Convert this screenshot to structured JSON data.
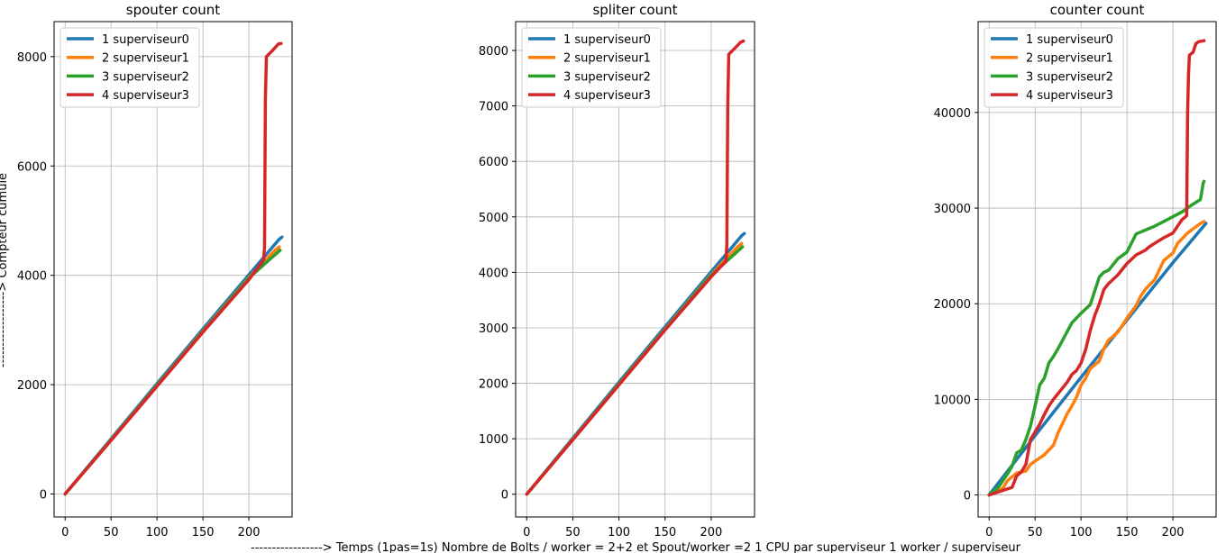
{
  "figure": {
    "ylabel": "------------------> Compteur cumulé",
    "xlabel": "-----------------> Temps (1pas=1s)  Nombre de Bolts / worker = 2+2 et Spout/worker =2  1 CPU par superviseur  1 worker / superviseur"
  },
  "colors": {
    "series0": "#1f77b4",
    "series1": "#ff7f0e",
    "series2": "#2ca02c",
    "series3": "#d62728",
    "grid": "#b0b0b0"
  },
  "chart_data": [
    {
      "type": "line",
      "title": "spouter count",
      "xlim": [
        -12,
        247
      ],
      "ylim": [
        -420,
        8640
      ],
      "xticks": [
        0,
        50,
        100,
        150,
        200
      ],
      "yticks": [
        0,
        2000,
        4000,
        6000,
        8000
      ],
      "grid": true,
      "legend": "top-left",
      "series": [
        {
          "name": "1 superviseur0",
          "x": [
            0,
            50,
            100,
            150,
            200,
            233,
            236
          ],
          "y": [
            0,
            1010,
            2020,
            3020,
            4010,
            4660,
            4700
          ]
        },
        {
          "name": "2 superviseur1",
          "x": [
            0,
            50,
            100,
            150,
            200,
            228,
            233
          ],
          "y": [
            0,
            990,
            1990,
            2980,
            3960,
            4450,
            4520
          ]
        },
        {
          "name": "3 superviseur2",
          "x": [
            0,
            50,
            100,
            150,
            200,
            228,
            234
          ],
          "y": [
            0,
            985,
            1985,
            2970,
            3950,
            4370,
            4460
          ]
        },
        {
          "name": "4 superviseur3",
          "x": [
            0,
            50,
            100,
            150,
            200,
            216,
            217,
            218,
            219,
            225,
            232,
            235
          ],
          "y": [
            0,
            980,
            1970,
            2960,
            3920,
            4280,
            4500,
            7200,
            8000,
            8100,
            8230,
            8240
          ]
        }
      ]
    },
    {
      "type": "line",
      "title": "spliter count",
      "xlim": [
        -12,
        247
      ],
      "ylim": [
        -410,
        8520
      ],
      "xticks": [
        0,
        50,
        100,
        150,
        200
      ],
      "yticks": [
        0,
        1000,
        2000,
        3000,
        4000,
        5000,
        6000,
        7000,
        8000
      ],
      "grid": true,
      "legend": "top-left",
      "series": [
        {
          "name": "1 superviseur0",
          "x": [
            0,
            50,
            100,
            150,
            200,
            233,
            236
          ],
          "y": [
            0,
            1010,
            2020,
            3020,
            4010,
            4660,
            4700
          ]
        },
        {
          "name": "2 superviseur1",
          "x": [
            0,
            50,
            100,
            150,
            200,
            228,
            233
          ],
          "y": [
            0,
            990,
            1990,
            2980,
            3960,
            4450,
            4520
          ]
        },
        {
          "name": "3 superviseur2",
          "x": [
            0,
            50,
            100,
            150,
            200,
            228,
            234
          ],
          "y": [
            0,
            985,
            1985,
            2970,
            3950,
            4370,
            4460
          ]
        },
        {
          "name": "4 superviseur3",
          "x": [
            0,
            50,
            100,
            150,
            200,
            216,
            217,
            218,
            219,
            225,
            232,
            235
          ],
          "y": [
            0,
            980,
            1970,
            2960,
            3920,
            4200,
            4500,
            7000,
            7930,
            8030,
            8150,
            8170
          ]
        }
      ]
    },
    {
      "type": "line",
      "title": "counter count",
      "xlim": [
        -12,
        247
      ],
      "ylim": [
        -2300,
        49500
      ],
      "xticks": [
        0,
        50,
        100,
        150,
        200
      ],
      "yticks": [
        0,
        10000,
        20000,
        30000,
        40000
      ],
      "grid": true,
      "legend": "top-left",
      "series": [
        {
          "name": "1 superviseur0",
          "x": [
            0,
            50,
            100,
            150,
            200,
            236
          ],
          "y": [
            0,
            6200,
            12300,
            18300,
            24300,
            28400
          ]
        },
        {
          "name": "2 superviseur1",
          "x": [
            0,
            15,
            20,
            30,
            40,
            45,
            60,
            70,
            75,
            80,
            85,
            90,
            95,
            100,
            105,
            110,
            120,
            125,
            130,
            140,
            150,
            160,
            165,
            170,
            180,
            185,
            190,
            200,
            205,
            210,
            215,
            220,
            230,
            234
          ],
          "y": [
            0,
            700,
            1500,
            2300,
            2500,
            3200,
            4200,
            5200,
            6500,
            7500,
            8500,
            9300,
            10200,
            11500,
            12200,
            13200,
            14000,
            15300,
            16200,
            17000,
            18500,
            19800,
            20800,
            21500,
            22500,
            23500,
            24500,
            25300,
            26300,
            26800,
            27300,
            27700,
            28400,
            28600
          ]
        },
        {
          "name": "3 superviseur2",
          "x": [
            0,
            10,
            20,
            25,
            30,
            35,
            40,
            45,
            50,
            55,
            60,
            65,
            70,
            75,
            80,
            85,
            90,
            95,
            100,
            110,
            120,
            125,
            130,
            140,
            150,
            160,
            170,
            180,
            190,
            200,
            210,
            220,
            230,
            233,
            234
          ],
          "y": [
            0,
            800,
            2200,
            3000,
            4400,
            4700,
            5800,
            7200,
            9300,
            11500,
            12200,
            13800,
            14500,
            15300,
            16200,
            17100,
            18000,
            18500,
            19000,
            19900,
            22800,
            23300,
            23500,
            24700,
            25400,
            27300,
            27700,
            28100,
            28600,
            29100,
            29600,
            30300,
            30900,
            32600,
            32800
          ]
        },
        {
          "name": "4 superviseur3",
          "x": [
            0,
            25,
            30,
            35,
            40,
            45,
            50,
            55,
            60,
            65,
            70,
            75,
            80,
            85,
            90,
            95,
            100,
            105,
            110,
            115,
            120,
            125,
            130,
            140,
            150,
            160,
            170,
            175,
            180,
            190,
            200,
            205,
            210,
            215,
            216,
            217,
            218,
            222,
            225,
            228,
            234
          ],
          "y": [
            0,
            800,
            2000,
            2400,
            3200,
            5800,
            6600,
            7400,
            8400,
            9300,
            10000,
            10600,
            11200,
            11800,
            12600,
            13000,
            13800,
            15200,
            17200,
            18800,
            20000,
            21500,
            22100,
            23000,
            24200,
            25100,
            25600,
            26000,
            26300,
            26900,
            27400,
            28100,
            28800,
            29200,
            40000,
            44000,
            46000,
            46300,
            47200,
            47400,
            47500
          ]
        }
      ]
    }
  ]
}
